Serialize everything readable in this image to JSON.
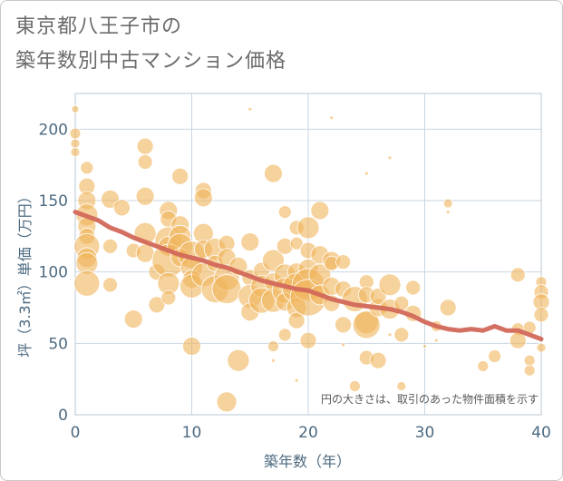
{
  "title_lines": [
    "東京都八王子市の",
    "築年数別中古マンション価格"
  ],
  "chart_data": {
    "type": "scatter",
    "title": "東京都八王子市の築年数別中古マンション価格",
    "xlabel": "築年数（年）",
    "ylabel": "坪（3.3㎡）単価（万円）",
    "xlim": [
      0,
      40
    ],
    "ylim": [
      0,
      225
    ],
    "xticks": [
      0,
      10,
      20,
      30,
      40
    ],
    "yticks": [
      0,
      50,
      100,
      150,
      200
    ],
    "grid": true,
    "annotation": "円の大きさは、取引のあった物件面積を示す",
    "colors": {
      "bubble": "#f0b45a",
      "trend": "#d2685a",
      "grid": "#c9d6e2",
      "tick_text": "#4d6a80"
    },
    "series": [
      {
        "kind": "bubbles",
        "points": [
          {
            "x": 0,
            "y": 214,
            "s": 4
          },
          {
            "x": 0,
            "y": 197,
            "s": 6
          },
          {
            "x": 0,
            "y": 190,
            "s": 5
          },
          {
            "x": 0,
            "y": 184,
            "s": 5
          },
          {
            "x": 1,
            "y": 173,
            "s": 7
          },
          {
            "x": 1,
            "y": 160,
            "s": 9
          },
          {
            "x": 1,
            "y": 150,
            "s": 10
          },
          {
            "x": 1,
            "y": 140,
            "s": 12
          },
          {
            "x": 1,
            "y": 132,
            "s": 10
          },
          {
            "x": 1,
            "y": 125,
            "s": 9
          },
          {
            "x": 1,
            "y": 118,
            "s": 14
          },
          {
            "x": 1,
            "y": 110,
            "s": 11
          },
          {
            "x": 1,
            "y": 106,
            "s": 12
          },
          {
            "x": 1,
            "y": 92,
            "s": 14
          },
          {
            "x": 3,
            "y": 151,
            "s": 10
          },
          {
            "x": 3,
            "y": 118,
            "s": 8
          },
          {
            "x": 3,
            "y": 91,
            "s": 8
          },
          {
            "x": 4,
            "y": 145,
            "s": 9
          },
          {
            "x": 5,
            "y": 67,
            "s": 10
          },
          {
            "x": 5,
            "y": 115,
            "s": 8
          },
          {
            "x": 6,
            "y": 188,
            "s": 9
          },
          {
            "x": 6,
            "y": 177,
            "s": 8
          },
          {
            "x": 6,
            "y": 153,
            "s": 10
          },
          {
            "x": 6,
            "y": 127,
            "s": 12
          },
          {
            "x": 6,
            "y": 113,
            "s": 10
          },
          {
            "x": 7,
            "y": 77,
            "s": 9
          },
          {
            "x": 7,
            "y": 100,
            "s": 9
          },
          {
            "x": 8,
            "y": 143,
            "s": 10
          },
          {
            "x": 8,
            "y": 137,
            "s": 9
          },
          {
            "x": 8,
            "y": 122,
            "s": 15
          },
          {
            "x": 8,
            "y": 118,
            "s": 11
          },
          {
            "x": 8,
            "y": 108,
            "s": 18
          },
          {
            "x": 8,
            "y": 92,
            "s": 12
          },
          {
            "x": 8,
            "y": 82,
            "s": 8
          },
          {
            "x": 9,
            "y": 167,
            "s": 9
          },
          {
            "x": 9,
            "y": 133,
            "s": 10
          },
          {
            "x": 9,
            "y": 125,
            "s": 12
          },
          {
            "x": 9,
            "y": 118,
            "s": 14
          },
          {
            "x": 9,
            "y": 110,
            "s": 10
          },
          {
            "x": 10,
            "y": 112,
            "s": 15
          },
          {
            "x": 10,
            "y": 103,
            "s": 12
          },
          {
            "x": 10,
            "y": 95,
            "s": 10
          },
          {
            "x": 10,
            "y": 90,
            "s": 13
          },
          {
            "x": 10,
            "y": 48,
            "s": 10
          },
          {
            "x": 11,
            "y": 157,
            "s": 9
          },
          {
            "x": 11,
            "y": 152,
            "s": 10
          },
          {
            "x": 11,
            "y": 127,
            "s": 11
          },
          {
            "x": 11,
            "y": 116,
            "s": 10
          },
          {
            "x": 11,
            "y": 98,
            "s": 13
          },
          {
            "x": 12,
            "y": 116,
            "s": 12
          },
          {
            "x": 12,
            "y": 106,
            "s": 9
          },
          {
            "x": 12,
            "y": 88,
            "s": 15
          },
          {
            "x": 13,
            "y": 120,
            "s": 9
          },
          {
            "x": 13,
            "y": 110,
            "s": 10
          },
          {
            "x": 13,
            "y": 96,
            "s": 14
          },
          {
            "x": 13,
            "y": 88,
            "s": 16
          },
          {
            "x": 13,
            "y": 9,
            "s": 11
          },
          {
            "x": 14,
            "y": 38,
            "s": 12
          },
          {
            "x": 14,
            "y": 104,
            "s": 10
          },
          {
            "x": 15,
            "y": 121,
            "s": 10
          },
          {
            "x": 15,
            "y": 96,
            "s": 9
          },
          {
            "x": 15,
            "y": 83,
            "s": 13
          },
          {
            "x": 15,
            "y": 72,
            "s": 10
          },
          {
            "x": 16,
            "y": 101,
            "s": 9
          },
          {
            "x": 16,
            "y": 90,
            "s": 12
          },
          {
            "x": 16,
            "y": 80,
            "s": 14
          },
          {
            "x": 17,
            "y": 169,
            "s": 10
          },
          {
            "x": 17,
            "y": 108,
            "s": 12
          },
          {
            "x": 17,
            "y": 93,
            "s": 10
          },
          {
            "x": 17,
            "y": 80,
            "s": 13
          },
          {
            "x": 17,
            "y": 48,
            "s": 6
          },
          {
            "x": 18,
            "y": 142,
            "s": 7
          },
          {
            "x": 18,
            "y": 118,
            "s": 9
          },
          {
            "x": 18,
            "y": 98,
            "s": 12
          },
          {
            "x": 18,
            "y": 87,
            "s": 14
          },
          {
            "x": 18,
            "y": 79,
            "s": 10
          },
          {
            "x": 18,
            "y": 56,
            "s": 7
          },
          {
            "x": 19,
            "y": 131,
            "s": 8
          },
          {
            "x": 19,
            "y": 120,
            "s": 7
          },
          {
            "x": 19,
            "y": 100,
            "s": 10
          },
          {
            "x": 19,
            "y": 89,
            "s": 16
          },
          {
            "x": 19,
            "y": 75,
            "s": 11
          },
          {
            "x": 19,
            "y": 66,
            "s": 9
          },
          {
            "x": 20,
            "y": 131,
            "s": 12
          },
          {
            "x": 20,
            "y": 115,
            "s": 9
          },
          {
            "x": 20,
            "y": 102,
            "s": 11
          },
          {
            "x": 20,
            "y": 91,
            "s": 18
          },
          {
            "x": 20,
            "y": 82,
            "s": 20
          },
          {
            "x": 20,
            "y": 52,
            "s": 9
          },
          {
            "x": 21,
            "y": 143,
            "s": 10
          },
          {
            "x": 21,
            "y": 112,
            "s": 10
          },
          {
            "x": 21,
            "y": 98,
            "s": 12
          },
          {
            "x": 21,
            "y": 84,
            "s": 11
          },
          {
            "x": 22,
            "y": 108,
            "s": 10
          },
          {
            "x": 22,
            "y": 106,
            "s": 8
          },
          {
            "x": 22,
            "y": 90,
            "s": 10
          },
          {
            "x": 22,
            "y": 78,
            "s": 9
          },
          {
            "x": 23,
            "y": 107,
            "s": 8
          },
          {
            "x": 23,
            "y": 88,
            "s": 9
          },
          {
            "x": 23,
            "y": 63,
            "s": 9
          },
          {
            "x": 24,
            "y": 81,
            "s": 14
          },
          {
            "x": 24,
            "y": 20,
            "s": 6
          },
          {
            "x": 25,
            "y": 93,
            "s": 8
          },
          {
            "x": 25,
            "y": 84,
            "s": 9
          },
          {
            "x": 25,
            "y": 65,
            "s": 13
          },
          {
            "x": 25,
            "y": 63,
            "s": 15
          },
          {
            "x": 25,
            "y": 40,
            "s": 8
          },
          {
            "x": 26,
            "y": 38,
            "s": 9
          },
          {
            "x": 26,
            "y": 75,
            "s": 10
          },
          {
            "x": 26,
            "y": 83,
            "s": 9
          },
          {
            "x": 27,
            "y": 91,
            "s": 12
          },
          {
            "x": 27,
            "y": 74,
            "s": 11
          },
          {
            "x": 28,
            "y": 78,
            "s": 8
          },
          {
            "x": 28,
            "y": 56,
            "s": 8
          },
          {
            "x": 28,
            "y": 20,
            "s": 5
          },
          {
            "x": 29,
            "y": 89,
            "s": 8
          },
          {
            "x": 29,
            "y": 71,
            "s": 9
          },
          {
            "x": 31,
            "y": 62,
            "s": 6
          },
          {
            "x": 32,
            "y": 148,
            "s": 5
          },
          {
            "x": 32,
            "y": 75,
            "s": 9
          },
          {
            "x": 35,
            "y": 34,
            "s": 6
          },
          {
            "x": 36,
            "y": 41,
            "s": 7
          },
          {
            "x": 38,
            "y": 98,
            "s": 8
          },
          {
            "x": 38,
            "y": 60,
            "s": 7
          },
          {
            "x": 38,
            "y": 52,
            "s": 9
          },
          {
            "x": 39,
            "y": 38,
            "s": 6
          },
          {
            "x": 39,
            "y": 31,
            "s": 6
          },
          {
            "x": 39,
            "y": 61,
            "s": 7
          },
          {
            "x": 40,
            "y": 93,
            "s": 6
          },
          {
            "x": 40,
            "y": 86,
            "s": 8
          },
          {
            "x": 40,
            "y": 79,
            "s": 9
          },
          {
            "x": 40,
            "y": 70,
            "s": 8
          },
          {
            "x": 40,
            "y": 47,
            "s": 5
          },
          {
            "x": 15,
            "y": 214,
            "s": 2
          },
          {
            "x": 22,
            "y": 208,
            "s": 2
          },
          {
            "x": 25,
            "y": 169,
            "s": 2
          },
          {
            "x": 27,
            "y": 180,
            "s": 2
          },
          {
            "x": 32,
            "y": 142,
            "s": 2
          },
          {
            "x": 17,
            "y": 38,
            "s": 2
          },
          {
            "x": 19,
            "y": 24,
            "s": 2
          },
          {
            "x": 23,
            "y": 49,
            "s": 2
          },
          {
            "x": 27,
            "y": 56,
            "s": 2
          },
          {
            "x": 30,
            "y": 48,
            "s": 2
          },
          {
            "x": 31,
            "y": 52,
            "s": 2
          }
        ]
      },
      {
        "kind": "trend",
        "x": [
          0,
          1,
          2,
          3,
          4,
          5,
          6,
          7,
          8,
          9,
          10,
          11,
          12,
          13,
          14,
          15,
          16,
          17,
          18,
          19,
          20,
          21,
          22,
          23,
          24,
          25,
          26,
          27,
          28,
          29,
          30,
          31,
          32,
          33,
          34,
          35,
          36,
          37,
          38,
          39,
          40
        ],
        "y": [
          142,
          139,
          136,
          131,
          128,
          124,
          121,
          118,
          115,
          112,
          110,
          108,
          105,
          103,
          100,
          97,
          94,
          92,
          90,
          88,
          87,
          84,
          81,
          79,
          77,
          76,
          75,
          74,
          72,
          69,
          65,
          62,
          60,
          59,
          60,
          59,
          62,
          59,
          59,
          56,
          53
        ]
      }
    ]
  }
}
